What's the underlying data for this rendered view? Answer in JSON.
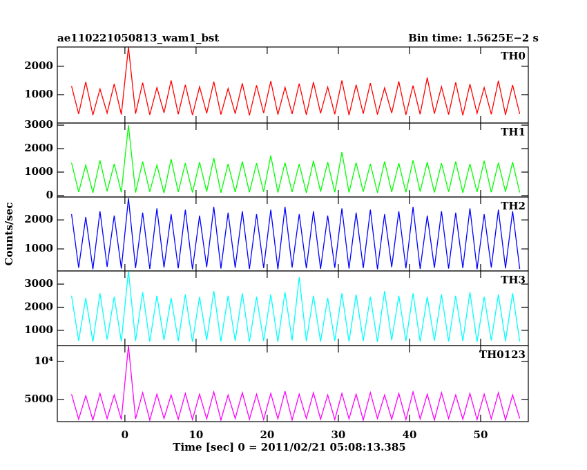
{
  "chart_data": [
    {
      "type": "line",
      "title": "ae110221050813_wam1_bst",
      "subtitle": "Bin time: 1.5625E−2 s",
      "x": [
        -7.5,
        -6.5,
        -5.5,
        -4.5,
        -3.5,
        -2.5,
        -1.5,
        -0.5,
        0.5,
        1.5,
        2.5,
        3.5,
        4.5,
        5.5,
        6.5,
        7.5,
        8.5,
        9.5,
        10.5,
        11.5,
        12.5,
        13.5,
        14.5,
        15.5,
        16.5,
        17.5,
        18.5,
        19.5,
        20.5,
        21.5,
        22.5,
        23.5,
        24.5,
        25.5,
        26.5,
        27.5,
        28.5,
        29.5,
        30.5,
        31.5,
        32.5,
        33.5,
        34.5,
        35.5,
        36.5,
        37.5,
        38.5,
        39.5,
        40.5,
        41.5,
        42.5,
        43.5,
        44.5,
        45.5,
        46.5,
        47.5,
        48.5,
        49.5,
        50.5,
        51.5,
        52.5,
        53.5,
        54.5,
        55.5
      ],
      "series": [
        {
          "name": "TH0",
          "color": "#ff0000",
          "values": [
            1300,
            320,
            1450,
            280,
            1200,
            350,
            1380,
            300,
            2680,
            330,
            1420,
            290,
            1250,
            360,
            1500,
            310,
            1350,
            280,
            1280,
            340,
            1460,
            300,
            1220,
            330,
            1400,
            270,
            1330,
            350,
            1480,
            300,
            1260,
            320,
            1390,
            290,
            1440,
            340,
            1270,
            310,
            1500,
            280,
            1350,
            330,
            1410,
            300,
            1240,
            350,
            1470,
            290,
            1320,
            310,
            1600,
            330,
            1280,
            300,
            1430,
            270,
            1370,
            340,
            1250,
            310,
            1490,
            290,
            1340,
            320
          ]
        }
      ],
      "xlim": [
        -9.5,
        56.7
      ],
      "xticks": [
        0,
        10,
        20,
        30,
        40,
        50
      ],
      "ylim": [
        0,
        2680
      ],
      "yticks": [
        1000,
        2000
      ]
    },
    {
      "type": "line",
      "x": [
        -7.5,
        -6.5,
        -5.5,
        -4.5,
        -3.5,
        -2.5,
        -1.5,
        -0.5,
        0.5,
        1.5,
        2.5,
        3.5,
        4.5,
        5.5,
        6.5,
        7.5,
        8.5,
        9.5,
        10.5,
        11.5,
        12.5,
        13.5,
        14.5,
        15.5,
        16.5,
        17.5,
        18.5,
        19.5,
        20.5,
        21.5,
        22.5,
        23.5,
        24.5,
        25.5,
        26.5,
        27.5,
        28.5,
        29.5,
        30.5,
        31.5,
        32.5,
        33.5,
        34.5,
        35.5,
        36.5,
        37.5,
        38.5,
        39.5,
        40.5,
        41.5,
        42.5,
        43.5,
        44.5,
        45.5,
        46.5,
        47.5,
        48.5,
        49.5,
        50.5,
        51.5,
        52.5,
        53.5,
        54.5,
        55.5
      ],
      "series": [
        {
          "name": "TH1",
          "color": "#00ff00",
          "values": [
            1400,
            150,
            1300,
            120,
            1500,
            180,
            1350,
            140,
            3000,
            130,
            1450,
            160,
            1300,
            110,
            1550,
            150,
            1380,
            130,
            1420,
            170,
            1600,
            120,
            1350,
            150,
            1450,
            140,
            1380,
            160,
            1700,
            130,
            1400,
            150,
            1350,
            120,
            1480,
            170,
            1420,
            140,
            1850,
            130,
            1400,
            160,
            1350,
            120,
            1450,
            150,
            1380,
            140,
            1500,
            170,
            1420,
            130,
            1380,
            160,
            1450,
            120,
            1350,
            150,
            1480,
            140,
            1400,
            160,
            1420,
            130
          ]
        }
      ],
      "xlim": [
        -9.5,
        56.7
      ],
      "xticks": [
        0,
        10,
        20,
        30,
        40,
        50
      ],
      "ylim": [
        -60,
        3090
      ],
      "yticks": [
        0,
        1000,
        2000,
        3000
      ]
    },
    {
      "type": "line",
      "ylabel": "Counts/sec",
      "x": [
        -7.5,
        -6.5,
        -5.5,
        -4.5,
        -3.5,
        -2.5,
        -1.5,
        -0.5,
        0.5,
        1.5,
        2.5,
        3.5,
        4.5,
        5.5,
        6.5,
        7.5,
        8.5,
        9.5,
        10.5,
        11.5,
        12.5,
        13.5,
        14.5,
        15.5,
        16.5,
        17.5,
        18.5,
        19.5,
        20.5,
        21.5,
        22.5,
        23.5,
        24.5,
        25.5,
        26.5,
        27.5,
        28.5,
        29.5,
        30.5,
        31.5,
        32.5,
        33.5,
        34.5,
        35.5,
        36.5,
        37.5,
        38.5,
        39.5,
        40.5,
        41.5,
        42.5,
        43.5,
        44.5,
        45.5,
        46.5,
        47.5,
        48.5,
        49.5,
        50.5,
        51.5,
        52.5,
        53.5,
        54.5,
        55.5
      ],
      "series": [
        {
          "name": "TH2",
          "color": "#0000ff",
          "values": [
            2200,
            350,
            2100,
            300,
            2300,
            380,
            2150,
            320,
            2750,
            340,
            2250,
            310,
            2400,
            360,
            2200,
            330,
            2350,
            300,
            2150,
            370,
            2450,
            320,
            2250,
            350,
            2300,
            310,
            2200,
            340,
            2350,
            300,
            2450,
            360,
            2200,
            330,
            2300,
            310,
            2150,
            350,
            2400,
            320,
            2250,
            340,
            2350,
            300,
            2200,
            370,
            2300,
            330,
            2450,
            310,
            2150,
            350,
            2300,
            320,
            2250,
            340,
            2400,
            300,
            2200,
            360,
            2350,
            330,
            2300,
            310
          ]
        }
      ],
      "xlim": [
        -9.5,
        56.7
      ],
      "xticks": [
        0,
        10,
        20,
        30,
        40,
        50
      ],
      "ylim": [
        240,
        2790
      ],
      "yticks": [
        1000,
        2000
      ]
    },
    {
      "type": "line",
      "x": [
        -7.5,
        -6.5,
        -5.5,
        -4.5,
        -3.5,
        -2.5,
        -1.5,
        -0.5,
        0.5,
        1.5,
        2.5,
        3.5,
        4.5,
        5.5,
        6.5,
        7.5,
        8.5,
        9.5,
        10.5,
        11.5,
        12.5,
        13.5,
        14.5,
        15.5,
        16.5,
        17.5,
        18.5,
        19.5,
        20.5,
        21.5,
        22.5,
        23.5,
        24.5,
        25.5,
        26.5,
        27.5,
        28.5,
        29.5,
        30.5,
        31.5,
        32.5,
        33.5,
        34.5,
        35.5,
        36.5,
        37.5,
        38.5,
        39.5,
        40.5,
        41.5,
        42.5,
        43.5,
        44.5,
        45.5,
        46.5,
        47.5,
        48.5,
        49.5,
        50.5,
        51.5,
        52.5,
        53.5,
        54.5,
        55.5
      ],
      "series": [
        {
          "name": "TH3",
          "color": "#00ffff",
          "values": [
            2500,
            550,
            2400,
            500,
            2600,
            600,
            2450,
            520,
            3570,
            540,
            2650,
            510,
            2500,
            580,
            2400,
            530,
            2550,
            500,
            2450,
            570,
            2700,
            520,
            2500,
            550,
            2600,
            510,
            2450,
            540,
            2550,
            500,
            2650,
            560,
            3300,
            530,
            2500,
            510,
            2400,
            550,
            2600,
            520,
            2550,
            540,
            2450,
            500,
            2700,
            570,
            2500,
            530,
            2600,
            510,
            2450,
            550,
            2550,
            520,
            2500,
            540,
            2650,
            500,
            2450,
            560,
            2550,
            530,
            2600,
            510
          ]
        }
      ],
      "xlim": [
        -9.5,
        56.7
      ],
      "xticks": [
        0,
        10,
        20,
        30,
        40,
        50
      ],
      "ylim": [
        340,
        3570
      ],
      "yticks": [
        1000,
        2000,
        3000
      ]
    },
    {
      "type": "line",
      "xlabel": "Time [sec] 0 = 2011/02/21 05:08:13.385",
      "x": [
        -7.5,
        -6.5,
        -5.5,
        -4.5,
        -3.5,
        -2.5,
        -1.5,
        -0.5,
        0.5,
        1.5,
        2.5,
        3.5,
        4.5,
        5.5,
        6.5,
        7.5,
        8.5,
        9.5,
        10.5,
        11.5,
        12.5,
        13.5,
        14.5,
        15.5,
        16.5,
        17.5,
        18.5,
        19.5,
        20.5,
        21.5,
        22.5,
        23.5,
        24.5,
        25.5,
        26.5,
        27.5,
        28.5,
        29.5,
        30.5,
        31.5,
        32.5,
        33.5,
        34.5,
        35.5,
        36.5,
        37.5,
        38.5,
        39.5,
        40.5,
        41.5,
        42.5,
        43.5,
        44.5,
        45.5,
        46.5,
        47.5,
        48.5,
        49.5,
        50.5,
        51.5,
        52.5,
        53.5,
        54.5,
        55.5
      ],
      "series": [
        {
          "name": "TH0123",
          "color": "#ff00ff",
          "values": [
            5700,
            2400,
            5500,
            2300,
            5800,
            2500,
            5600,
            2350,
            12090,
            2450,
            5900,
            2300,
            5700,
            2500,
            5600,
            2400,
            5800,
            2350,
            5700,
            2450,
            6000,
            2300,
            5600,
            2500,
            5900,
            2400,
            5700,
            2350,
            5800,
            2450,
            6100,
            2300,
            5700,
            2500,
            5900,
            2400,
            5600,
            2350,
            5800,
            2450,
            5700,
            2300,
            5900,
            2500,
            5600,
            2400,
            5800,
            2350,
            6000,
            2450,
            5700,
            2300,
            5900,
            2500,
            5600,
            2400,
            5800,
            2350,
            5700,
            2450,
            5900,
            2300,
            5600,
            2500
          ]
        }
      ],
      "xlim": [
        -9.5,
        56.7
      ],
      "xticks": [
        0,
        10,
        20,
        30,
        40,
        50
      ],
      "ylim": [
        2090,
        12090
      ],
      "yticks": [
        5000,
        {
          "value": 10000,
          "label": "10⁴"
        }
      ]
    }
  ]
}
